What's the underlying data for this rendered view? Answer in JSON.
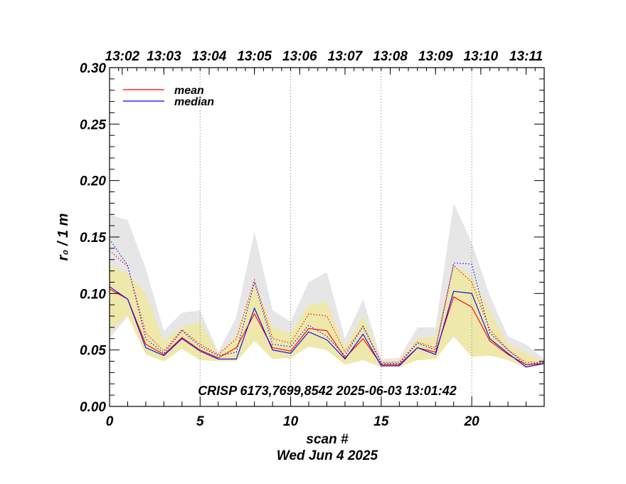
{
  "chart_data": {
    "type": "line",
    "xlabel": "scan #",
    "date_label": "Wed Jun  4 2025",
    "ylabel": "r₀ / 1 m",
    "annotation": "CRISP 6173,7699,8542 2025-06-03 13:01:42",
    "xlim": [
      0,
      24
    ],
    "ylim": [
      0,
      0.3
    ],
    "x_ticks": [
      "0",
      "5",
      "10",
      "15",
      "20"
    ],
    "y_ticks": [
      "0.00",
      "0.05",
      "0.10",
      "0.15",
      "0.20",
      "0.25",
      "0.30"
    ],
    "top_axis_labels": [
      "13:02",
      "13:03",
      "13:04",
      "13:05",
      "13:06",
      "13:07",
      "13:08",
      "13:09",
      "13:10",
      "13:11"
    ],
    "top_axis_positions": [
      0.7,
      3.0,
      5.5,
      8.0,
      10.5,
      13.0,
      15.5,
      18.0,
      20.5,
      23.0
    ],
    "x": [
      0,
      1,
      2,
      3,
      4,
      5,
      6,
      7,
      8,
      9,
      10,
      11,
      12,
      13,
      14,
      15,
      16,
      17,
      18,
      19,
      20,
      21,
      22,
      23,
      24
    ],
    "gray_band": {
      "upper": [
        0.17,
        0.165,
        0.122,
        0.067,
        0.083,
        0.085,
        0.048,
        0.079,
        0.155,
        0.085,
        0.075,
        0.11,
        0.119,
        0.06,
        0.095,
        0.042,
        0.043,
        0.07,
        0.07,
        0.18,
        0.145,
        0.098,
        0.062,
        0.055,
        0.042
      ],
      "lower": [
        0.06,
        0.08,
        0.046,
        0.04,
        0.051,
        0.041,
        0.04,
        0.04,
        0.058,
        0.042,
        0.043,
        0.053,
        0.05,
        0.037,
        0.041,
        0.035,
        0.035,
        0.041,
        0.042,
        0.062,
        0.044,
        0.045,
        0.041,
        0.034,
        0.037
      ]
    },
    "yellow_band": {
      "upper": [
        0.125,
        0.118,
        0.1,
        0.058,
        0.07,
        0.075,
        0.046,
        0.062,
        0.11,
        0.07,
        0.065,
        0.09,
        0.092,
        0.052,
        0.08,
        0.04,
        0.04,
        0.06,
        0.062,
        0.125,
        0.115,
        0.085,
        0.055,
        0.047,
        0.04
      ],
      "lower": [
        0.068,
        0.08,
        0.046,
        0.04,
        0.051,
        0.041,
        0.04,
        0.04,
        0.058,
        0.042,
        0.043,
        0.053,
        0.05,
        0.037,
        0.041,
        0.035,
        0.035,
        0.041,
        0.042,
        0.062,
        0.044,
        0.045,
        0.041,
        0.034,
        0.037
      ]
    },
    "series": [
      {
        "name": "mean",
        "color": "#ff0000",
        "style": "solid",
        "values": [
          0.104,
          0.095,
          0.055,
          0.046,
          0.061,
          0.05,
          0.043,
          0.052,
          0.082,
          0.052,
          0.049,
          0.069,
          0.067,
          0.043,
          0.06,
          0.037,
          0.037,
          0.052,
          0.048,
          0.097,
          0.088,
          0.058,
          0.046,
          0.037,
          0.038
        ]
      },
      {
        "name": "median",
        "color": "#0000ff",
        "style": "solid",
        "values": [
          0.106,
          0.095,
          0.052,
          0.045,
          0.06,
          0.049,
          0.042,
          0.042,
          0.087,
          0.05,
          0.047,
          0.066,
          0.059,
          0.042,
          0.064,
          0.036,
          0.036,
          0.052,
          0.046,
          0.102,
          0.1,
          0.06,
          0.047,
          0.035,
          0.038
        ]
      },
      {
        "name": "mean-dotted",
        "color": "#ff0000",
        "style": "dotted",
        "values": [
          0.138,
          0.124,
          0.065,
          0.049,
          0.068,
          0.055,
          0.046,
          0.06,
          0.112,
          0.06,
          0.056,
          0.082,
          0.08,
          0.048,
          0.071,
          0.039,
          0.039,
          0.057,
          0.052,
          0.125,
          0.11,
          0.068,
          0.05,
          0.039,
          0.039
        ]
      },
      {
        "name": "median-dotted",
        "color": "#0000ff",
        "style": "dotted",
        "values": [
          0.148,
          0.125,
          0.06,
          0.047,
          0.067,
          0.053,
          0.045,
          0.048,
          0.11,
          0.055,
          0.053,
          0.072,
          0.062,
          0.045,
          0.071,
          0.038,
          0.038,
          0.056,
          0.05,
          0.127,
          0.126,
          0.065,
          0.05,
          0.037,
          0.039
        ]
      }
    ],
    "legend": [
      {
        "label": "mean",
        "color": "#ff0000"
      },
      {
        "label": "median",
        "color": "#0000ff"
      }
    ],
    "vertical_dotted_lines": [
      5,
      10,
      15,
      20
    ],
    "colors": {
      "gray_band": "#e6e6e6",
      "yellow_band": "#eee8aa"
    }
  }
}
